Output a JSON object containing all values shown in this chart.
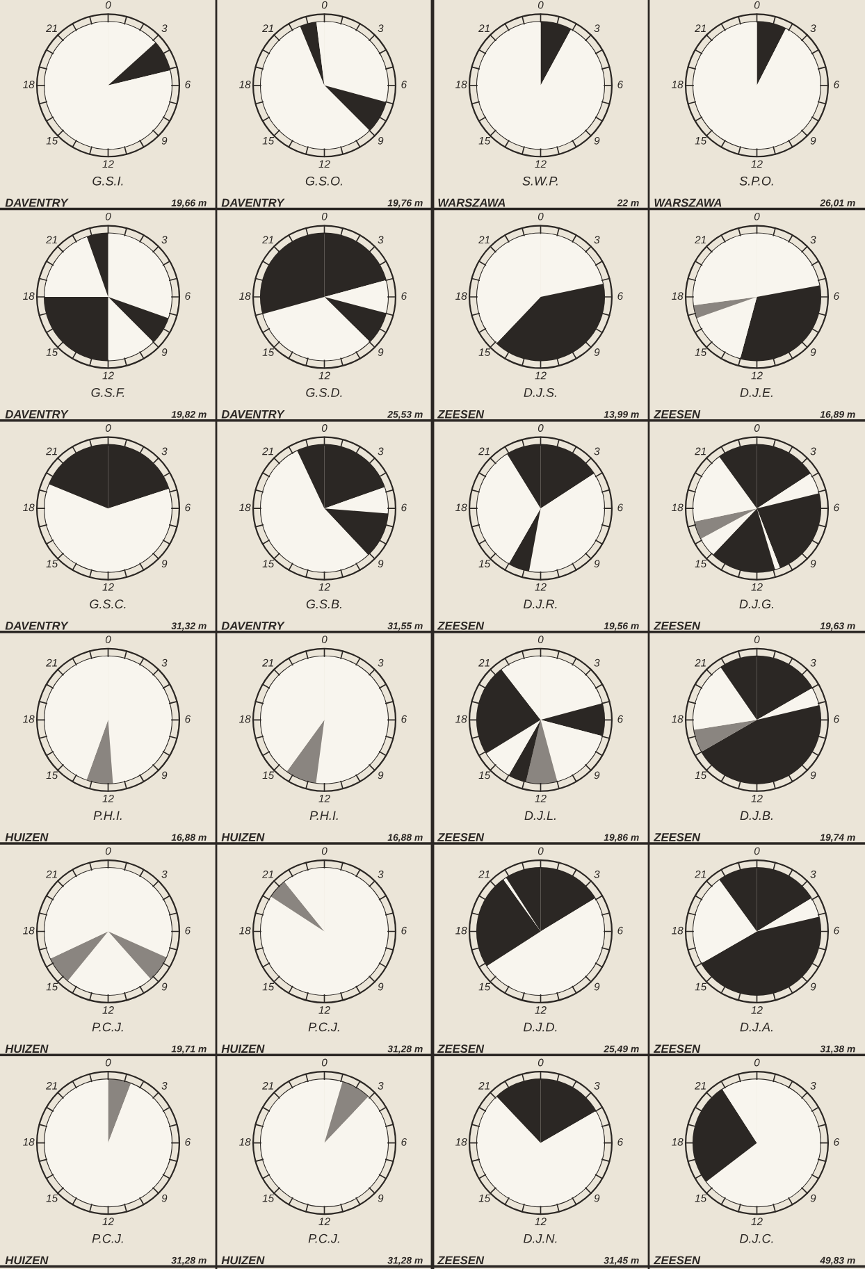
{
  "chart_data": [
    {
      "type": "pie",
      "title": "G.S.I.",
      "categories": [
        null,
        null,
        null
      ],
      "values": [
        13.3,
        7.9,
        78.8
      ],
      "colors": [
        "#f8f5ee",
        "#2b2724",
        "#f8f5ee"
      ],
      "annotations": [
        "DAVENTRY",
        "19,66 m",
        "0",
        "3",
        "6",
        "9",
        "12",
        "15",
        "18",
        "21"
      ]
    },
    {
      "type": "pie",
      "title": "G.S.O.",
      "categories": [
        null,
        null,
        null,
        null,
        null
      ],
      "values": [
        29.2,
        8.3,
        56.3,
        4.2,
        2.0
      ],
      "colors": [
        "#f8f5ee",
        "#2b2724",
        "#f8f5ee",
        "#2b2724",
        "#f8f5ee"
      ],
      "annotations": [
        "DAVENTRY",
        "19,76 m",
        "0",
        "3",
        "6",
        "9",
        "12",
        "15",
        "18",
        "21"
      ]
    },
    {
      "type": "pie",
      "title": "S.W.P.",
      "categories": [
        null,
        null
      ],
      "values": [
        7.9,
        92.1
      ],
      "colors": [
        "#2b2724",
        "#f8f5ee"
      ],
      "annotations": [
        "WARSZAWA",
        "22 m",
        "0",
        "3",
        "6",
        "9",
        "12",
        "15",
        "18",
        "21"
      ]
    },
    {
      "type": "pie",
      "title": "S.P.O.",
      "categories": [
        null,
        null
      ],
      "values": [
        7.5,
        92.5
      ],
      "colors": [
        "#2b2724",
        "#f8f5ee"
      ],
      "annotations": [
        "WARSZAWA",
        "26,01 m",
        "0",
        "3",
        "6",
        "9",
        "12",
        "15",
        "18",
        "21"
      ]
    },
    {
      "type": "pie",
      "title": "G.S.F.",
      "categories": [
        null,
        null,
        null,
        null,
        null,
        null
      ],
      "values": [
        30.4,
        7.1,
        12.5,
        25.0,
        19.6,
        5.4
      ],
      "colors": [
        "#f8f5ee",
        "#2b2724",
        "#f8f5ee",
        "#2b2724",
        "#f8f5ee",
        "#2b2724"
      ],
      "annotations": [
        "DAVENTRY",
        "19,82 m",
        "0",
        "3",
        "6",
        "9",
        "12",
        "15",
        "18",
        "21"
      ]
    },
    {
      "type": "pie",
      "title": "G.S.D.",
      "categories": [
        null,
        null,
        null,
        null,
        null
      ],
      "values": [
        20.8,
        8.3,
        8.3,
        33.3,
        29.3
      ],
      "colors": [
        "#2b2724",
        "#f8f5ee",
        "#2b2724",
        "#f8f5ee",
        "#2b2724"
      ],
      "annotations": [
        "DAVENTRY",
        "25,53 m",
        "0",
        "3",
        "6",
        "9",
        "12",
        "15",
        "18",
        "21"
      ]
    },
    {
      "type": "pie",
      "title": "D.J.S.",
      "categories": [
        null,
        null,
        null
      ],
      "values": [
        21.7,
        40.4,
        37.9
      ],
      "colors": [
        "#f8f5ee",
        "#2b2724",
        "#f8f5ee"
      ],
      "annotations": [
        "ZEESEN",
        "13,99 m",
        "0",
        "3",
        "6",
        "9",
        "12",
        "15",
        "18",
        "21"
      ]
    },
    {
      "type": "pie",
      "title": "D.J.E.",
      "categories": [
        null,
        null,
        null,
        null,
        null
      ],
      "values": [
        22.1,
        32.1,
        15.4,
        3.3,
        27.1
      ],
      "colors": [
        "#f8f5ee",
        "#2b2724",
        "#f8f5ee",
        "#8a8580",
        "#f8f5ee"
      ],
      "annotations": [
        "ZEESEN",
        "16,89 m",
        "0",
        "3",
        "6",
        "9",
        "12",
        "15",
        "18",
        "21"
      ]
    },
    {
      "type": "pie",
      "title": "G.S.C.",
      "categories": [
        null,
        null,
        null
      ],
      "values": [
        20.0,
        61.2,
        18.8
      ],
      "colors": [
        "#2b2724",
        "#f8f5ee",
        "#2b2724"
      ],
      "annotations": [
        "DAVENTRY",
        "31,32 m",
        "0",
        "3",
        "6",
        "9",
        "12",
        "15",
        "18",
        "21"
      ]
    },
    {
      "type": "pie",
      "title": "G.S.B.",
      "categories": [
        null,
        null,
        null,
        null,
        null
      ],
      "values": [
        19.6,
        6.7,
        11.7,
        55.0,
        7.0
      ],
      "colors": [
        "#2b2724",
        "#f8f5ee",
        "#2b2724",
        "#f8f5ee",
        "#2b2724"
      ],
      "annotations": [
        "DAVENTRY",
        "31,55 m",
        "0",
        "3",
        "6",
        "9",
        "12",
        "15",
        "18",
        "21"
      ]
    },
    {
      "type": "pie",
      "title": "D.J.R.",
      "categories": [
        null,
        null,
        null,
        null,
        null
      ],
      "values": [
        15.8,
        37.1,
        5.4,
        32.9,
        8.8
      ],
      "colors": [
        "#2b2724",
        "#f8f5ee",
        "#2b2724",
        "#f8f5ee",
        "#2b2724"
      ],
      "annotations": [
        "ZEESEN",
        "19,56 m",
        "0",
        "3",
        "6",
        "9",
        "12",
        "15",
        "18",
        "21"
      ]
    },
    {
      "type": "pie",
      "title": "D.J.G.",
      "categories": [
        null,
        null,
        null,
        null,
        null,
        null,
        null,
        null,
        null
      ],
      "values": [
        15.8,
        5.4,
        22.9,
        1.3,
        16.7,
        5.0,
        4.6,
        18.3,
        10.0
      ],
      "colors": [
        "#2b2724",
        "#f8f5ee",
        "#2b2724",
        "#f8f5ee",
        "#2b2724",
        "#f8f5ee",
        "#8a8580",
        "#f8f5ee",
        "#2b2724"
      ],
      "annotations": [
        "ZEESEN",
        "19,63 m",
        "0",
        "3",
        "6",
        "9",
        "12",
        "15",
        "18",
        "21"
      ]
    },
    {
      "type": "pie",
      "title": "P.H.I.",
      "categories": [
        null,
        null,
        null
      ],
      "values": [
        48.8,
        6.7,
        44.5
      ],
      "colors": [
        "#f8f5ee",
        "#8a8580",
        "#f8f5ee"
      ],
      "annotations": [
        "HUIZEN",
        "16,88 m",
        "0",
        "3",
        "6",
        "9",
        "12",
        "15",
        "18",
        "21"
      ]
    },
    {
      "type": "pie",
      "title": "P.H.I.",
      "categories": [
        null,
        null,
        null
      ],
      "values": [
        52.1,
        7.9,
        40.0
      ],
      "colors": [
        "#f8f5ee",
        "#8a8580",
        "#f8f5ee"
      ],
      "annotations": [
        "HUIZEN",
        "16,88 m",
        "0",
        "3",
        "6",
        "9",
        "12",
        "15",
        "18",
        "21"
      ]
    },
    {
      "type": "pie",
      "title": "D.J.L.",
      "categories": [
        null,
        null,
        null,
        null,
        null,
        null,
        null,
        null
      ],
      "values": [
        20.8,
        8.3,
        16.7,
        7.9,
        4.6,
        7.9,
        23.3,
        10.5
      ],
      "colors": [
        "#f8f5ee",
        "#2b2724",
        "#f8f5ee",
        "#8a8580",
        "#2b2724",
        "#f8f5ee",
        "#2b2724",
        "#f8f5ee"
      ],
      "annotations": [
        "ZEESEN",
        "19,86 m",
        "0",
        "3",
        "6",
        "9",
        "12",
        "15",
        "18",
        "21"
      ]
    },
    {
      "type": "pie",
      "title": "D.J.B.",
      "categories": [
        null,
        null,
        null,
        null,
        null,
        null
      ],
      "values": [
        16.7,
        4.6,
        45.4,
        5.8,
        17.9,
        9.6
      ],
      "colors": [
        "#2b2724",
        "#f8f5ee",
        "#2b2724",
        "#8a8580",
        "#f8f5ee",
        "#2b2724"
      ],
      "annotations": [
        "ZEESEN",
        "19,74 m",
        "0",
        "3",
        "6",
        "9",
        "12",
        "15",
        "18",
        "21"
      ]
    },
    {
      "type": "pie",
      "title": "P.C.J.",
      "categories": [
        null,
        null,
        null,
        null,
        null
      ],
      "values": [
        31.7,
        6.7,
        22.5,
        7.1,
        32.0
      ],
      "colors": [
        "#f8f5ee",
        "#8a8580",
        "#f8f5ee",
        "#8a8580",
        "#f8f5ee"
      ],
      "annotations": [
        "HUIZEN",
        "19,71 m",
        "0",
        "3",
        "6",
        "9",
        "12",
        "15",
        "18",
        "21"
      ]
    },
    {
      "type": "pie",
      "title": "P.C.J.",
      "categories": [
        null,
        null,
        null
      ],
      "values": [
        84.2,
        5.0,
        10.8
      ],
      "colors": [
        "#f8f5ee",
        "#8a8580",
        "#f8f5ee"
      ],
      "annotations": [
        "HUIZEN",
        "31,28 m",
        "0",
        "3",
        "6",
        "9",
        "12",
        "15",
        "18",
        "21"
      ]
    },
    {
      "type": "pie",
      "title": "D.J.D.",
      "categories": [
        null,
        null,
        null,
        null,
        null
      ],
      "values": [
        16.3,
        49.6,
        24.2,
        0.8,
        9.1
      ],
      "colors": [
        "#2b2724",
        "#f8f5ee",
        "#2b2724",
        "#f8f5ee",
        "#2b2724"
      ],
      "annotations": [
        "ZEESEN",
        "25,49 m",
        "0",
        "3",
        "6",
        "9",
        "12",
        "15",
        "18",
        "21"
      ]
    },
    {
      "type": "pie",
      "title": "D.J.A.",
      "categories": [
        null,
        null,
        null,
        null,
        null
      ],
      "values": [
        16.3,
        5.0,
        45.4,
        23.3,
        10.0
      ],
      "colors": [
        "#2b2724",
        "#f8f5ee",
        "#2b2724",
        "#f8f5ee",
        "#2b2724"
      ],
      "annotations": [
        "ZEESEN",
        "31,38 m",
        "0",
        "3",
        "6",
        "9",
        "12",
        "15",
        "18",
        "21"
      ]
    },
    {
      "type": "pie",
      "title": "P.C.J.",
      "categories": [
        null,
        null
      ],
      "values": [
        5.8,
        94.2
      ],
      "colors": [
        "#8a8580",
        "#f8f5ee"
      ],
      "annotations": [
        "HUIZEN",
        "31,28 m",
        "0",
        "3",
        "6",
        "9",
        "12",
        "15",
        "18",
        "21"
      ]
    },
    {
      "type": "pie",
      "title": "P.C.J.",
      "categories": [
        null,
        null,
        null
      ],
      "values": [
        4.6,
        7.5,
        87.9
      ],
      "colors": [
        "#f8f5ee",
        "#8a8580",
        "#f8f5ee"
      ],
      "annotations": [
        "HUIZEN",
        "31,28 m",
        "0",
        "3",
        "6",
        "9",
        "12",
        "15",
        "18",
        "21"
      ]
    },
    {
      "type": "pie",
      "title": "D.J.N.",
      "categories": [
        null,
        null,
        null
      ],
      "values": [
        16.7,
        71.2,
        12.1
      ],
      "colors": [
        "#2b2724",
        "#f8f5ee",
        "#2b2724"
      ],
      "annotations": [
        "ZEESEN",
        "31,45 m",
        "0",
        "3",
        "6",
        "9",
        "12",
        "15",
        "18",
        "21"
      ]
    },
    {
      "type": "pie",
      "title": "D.J.C.",
      "categories": [
        null,
        null,
        null
      ],
      "values": [
        64.6,
        26.3,
        9.1
      ],
      "colors": [
        "#f8f5ee",
        "#2b2724",
        "#f8f5ee"
      ],
      "annotations": [
        "ZEESEN",
        "49,83 m",
        "0",
        "3",
        "6",
        "9",
        "12",
        "15",
        "18",
        "21"
      ]
    }
  ]
}
